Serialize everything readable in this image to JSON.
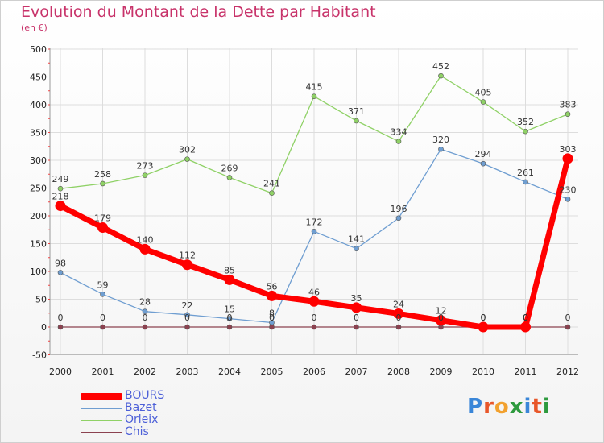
{
  "title": "Evolution du Montant de la Dette par Habitant",
  "subtitle": "(en €)",
  "logo": {
    "text": "Proxiti",
    "letters": [
      "P",
      "r",
      "o",
      "x",
      "i",
      "t",
      "i"
    ],
    "colors": [
      "#3a86d8",
      "#e8572a",
      "#f2a12e",
      "#2e9a3e",
      "#3a86d8",
      "#e8572a",
      "#2e9a3e"
    ]
  },
  "chart_data": {
    "type": "line",
    "title": "Evolution du Montant de la Dette par Habitant",
    "subtitle": "(en €)",
    "xlabel": "",
    "ylabel": "",
    "categories": [
      "2000",
      "2001",
      "2002",
      "2003",
      "2004",
      "2005",
      "2006",
      "2007",
      "2008",
      "2009",
      "2010",
      "2011",
      "2012"
    ],
    "ylim": [
      -50,
      500
    ],
    "yticks": [
      -50,
      0,
      50,
      100,
      150,
      200,
      250,
      300,
      350,
      400,
      450,
      500
    ],
    "ytick_labels": [
      "-50",
      "0",
      "50",
      "100",
      "150",
      "200",
      "250",
      "300",
      "350",
      "400",
      "450",
      "500"
    ],
    "grid": true,
    "legend_position": "bottom-left",
    "series": [
      {
        "name": "Orleix",
        "color": "#8fd166",
        "values": [
          249,
          258,
          273,
          302,
          269,
          241,
          415,
          371,
          334,
          452,
          405,
          352,
          383
        ],
        "labels": [
          "249",
          "258",
          "273",
          "302",
          "269",
          "241",
          "415",
          "371",
          "334",
          "452",
          "405",
          "352",
          "383"
        ]
      },
      {
        "name": "Bazet",
        "color": "#6f9ed1",
        "values": [
          98,
          59,
          28,
          22,
          15,
          8,
          172,
          141,
          196,
          320,
          294,
          261,
          230
        ],
        "labels": [
          "98",
          "59",
          "28",
          "22",
          "15",
          "8",
          "172",
          "141",
          "196",
          "320",
          "294",
          "261",
          "230"
        ]
      },
      {
        "name": "Chis",
        "color": "#8b4250",
        "values": [
          0,
          0,
          0,
          0,
          0,
          0,
          0,
          0,
          0,
          0,
          0,
          0,
          0
        ],
        "labels": [
          "0",
          "0",
          "0",
          "0",
          "0",
          "0",
          "0",
          "0",
          "0",
          "0",
          "0",
          "0",
          "0"
        ]
      },
      {
        "name": "BOURS",
        "color": "#ff0000",
        "values": [
          218,
          179,
          140,
          112,
          85,
          56,
          46,
          35,
          24,
          12,
          0,
          0,
          303
        ],
        "labels": [
          "218",
          "179",
          "140",
          "112",
          "85",
          "56",
          "46",
          "35",
          "24",
          "12",
          "0",
          "0",
          "303"
        ]
      }
    ]
  },
  "legend": [
    {
      "name": "BOURS",
      "color": "#ff0000"
    },
    {
      "name": "Bazet",
      "color": "#6f9ed1"
    },
    {
      "name": "Orleix",
      "color": "#8fd166"
    },
    {
      "name": "Chis",
      "color": "#8b4250"
    }
  ]
}
